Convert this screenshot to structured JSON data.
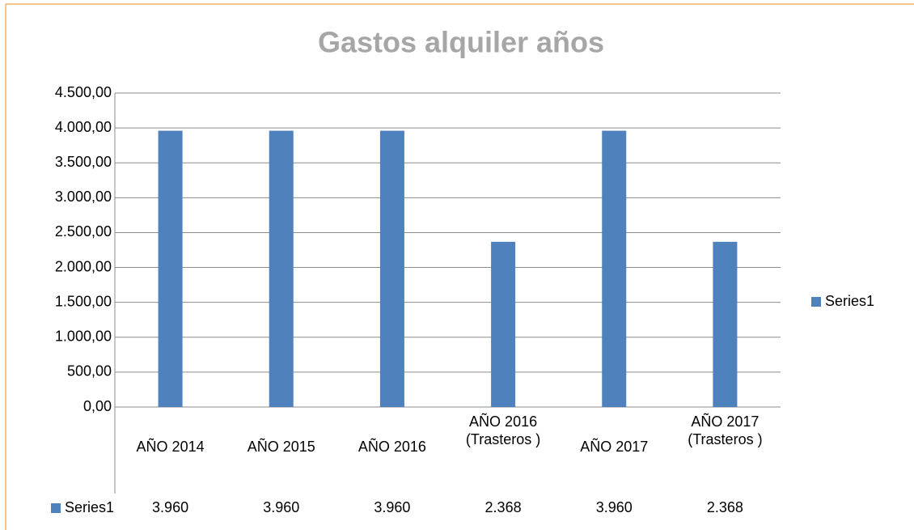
{
  "chart_data": {
    "type": "bar",
    "title": "Gastos alquiler años",
    "categories": [
      "AÑO 2014",
      "AÑO 2015",
      "AÑO 2016",
      "AÑO 2016 (Trasteros )",
      "AÑO 2017",
      "AÑO 2017 (Trasteros )"
    ],
    "series": [
      {
        "name": "Series1",
        "color": "#4f81bd",
        "values": [
          3960,
          3960,
          3960,
          2368,
          3960,
          2368
        ],
        "value_labels": [
          "3.960",
          "3.960",
          "3.960",
          "2.368",
          "3.960",
          "2.368"
        ]
      }
    ],
    "ylim": [
      0,
      4500
    ],
    "yticks": [
      {
        "value": 0,
        "label": "0,00"
      },
      {
        "value": 500,
        "label": "500,00"
      },
      {
        "value": 1000,
        "label": "1.000,00"
      },
      {
        "value": 1500,
        "label": "1.500,00"
      },
      {
        "value": 2000,
        "label": "2.000,00"
      },
      {
        "value": 2500,
        "label": "2.500,00"
      },
      {
        "value": 3000,
        "label": "3.000,00"
      },
      {
        "value": 3500,
        "label": "3.500,00"
      },
      {
        "value": 4000,
        "label": "4.000,00"
      },
      {
        "value": 4500,
        "label": "4.500,00"
      }
    ],
    "grid": true,
    "legend": "right"
  }
}
